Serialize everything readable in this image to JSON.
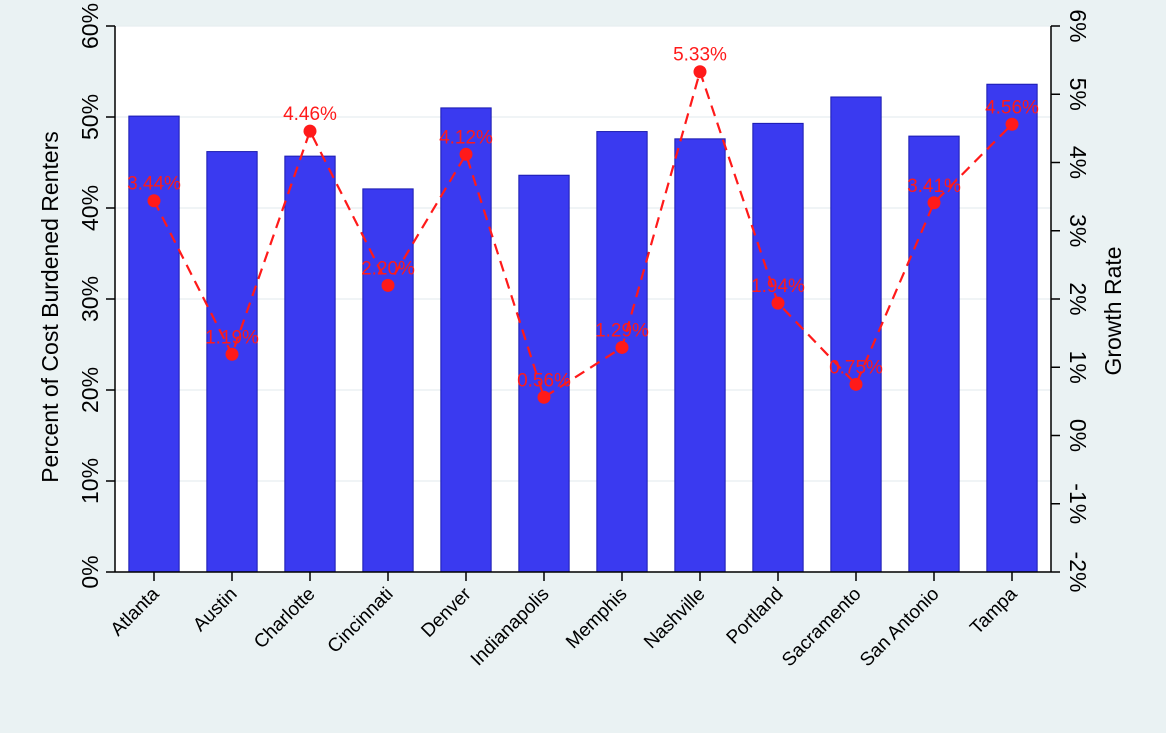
{
  "chart_data": {
    "type": "bar",
    "categories": [
      "Atlanta",
      "Austin",
      "Charlotte",
      "Cincinnati",
      "Denver",
      "Indianapolis",
      "Memphis",
      "Nashville",
      "Portland",
      "Sacramento",
      "San Antonio",
      "Tampa"
    ],
    "series": [
      {
        "axis": "left",
        "type": "bar",
        "values": [
          50.1,
          46.2,
          45.7,
          42.1,
          51.0,
          43.6,
          48.4,
          47.6,
          49.3,
          52.2,
          47.9,
          53.6
        ],
        "color": "#3a3af0"
      },
      {
        "axis": "right",
        "type": "line",
        "values": [
          3.44,
          1.19,
          4.46,
          2.2,
          4.12,
          0.56,
          1.29,
          5.33,
          1.94,
          0.75,
          3.41,
          4.56
        ],
        "data_labels": [
          "3.44%",
          "1.19%",
          "4.46%",
          "2.20%",
          "4.12%",
          "0.56%",
          "1.29%",
          "5.33%",
          "1.94%",
          "0.75%",
          "3.41%",
          "4.56%"
        ],
        "color": "#ff1a1a",
        "line_style": "dashed",
        "marker": "circle"
      }
    ],
    "ylabel": "Percent of Cost Burdened Renters",
    "y2label": "Growth Rate",
    "ylim": [
      0,
      60
    ],
    "y2lim": [
      -2,
      6
    ],
    "yticks": [
      "0%",
      "10%",
      "20%",
      "30%",
      "40%",
      "50%",
      "60%"
    ],
    "y2ticks": [
      "-2%",
      "-1%",
      "0%",
      "1%",
      "2%",
      "3%",
      "4%",
      "5%",
      "6%"
    ],
    "grid": true
  }
}
